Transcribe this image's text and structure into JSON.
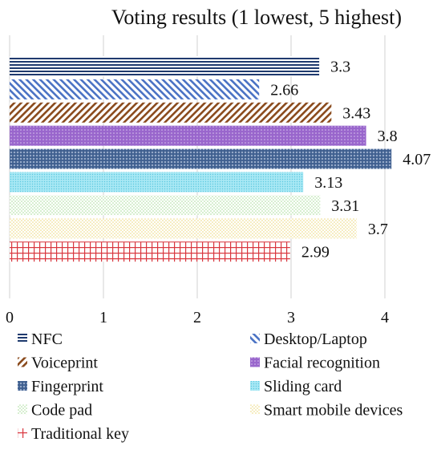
{
  "chart_data": {
    "type": "bar",
    "orientation": "horizontal",
    "title": "Voting results (1 lowest, 5 highest)",
    "xlabel": "",
    "ylabel": "",
    "xlim": [
      0,
      4.5
    ],
    "x_ticks": [
      0,
      1,
      2,
      3,
      4
    ],
    "grid": "vertical-major",
    "legend_position": "bottom",
    "series": [
      {
        "name": "NFC",
        "value": 3.3,
        "label": "3.3",
        "color": "#1f3a6e",
        "pattern": "horizontal-lines"
      },
      {
        "name": "Desktop/Laptop",
        "value": 2.66,
        "label": "2.66",
        "color": "#4a72c4",
        "pattern": "diagonal-stripes"
      },
      {
        "name": "Voiceprint",
        "value": 3.43,
        "label": "3.43",
        "color": "#8a4a1c",
        "pattern": "back-diagonal-stripes"
      },
      {
        "name": "Facial recognition",
        "value": 3.8,
        "label": "3.8",
        "color": "#9966cc",
        "pattern": "dotted-grid"
      },
      {
        "name": "Fingerprint",
        "value": 4.07,
        "label": "4.07",
        "color": "#3f5f8f",
        "pattern": "diamond-grid"
      },
      {
        "name": "Sliding card",
        "value": 3.13,
        "label": "3.13",
        "color": "#7fd6e8",
        "pattern": "fine-dots"
      },
      {
        "name": "Code pad",
        "value": 3.31,
        "label": "3.31",
        "color": "#bfe6b0",
        "pattern": "sparse-dots"
      },
      {
        "name": "Smart mobile devices",
        "value": 3.7,
        "label": "3.7",
        "color": "#f2e6a0",
        "pattern": "sparse-dots"
      },
      {
        "name": "Traditional key",
        "value": 2.99,
        "label": "2.99",
        "color": "#d9363e",
        "pattern": "grid"
      }
    ]
  }
}
